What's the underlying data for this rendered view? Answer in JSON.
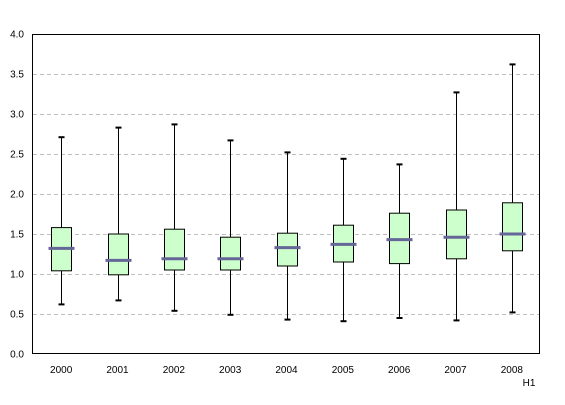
{
  "chart_data": {
    "type": "box",
    "categories": [
      "2000",
      "2001",
      "2002",
      "2003",
      "2004",
      "2005",
      "2006",
      "2007",
      "2008"
    ],
    "x_suffix_label": "H1",
    "y_ticks": [
      "0.0",
      "0.5",
      "1.0",
      "1.5",
      "2.0",
      "2.5",
      "3.0",
      "3.5",
      "4.0"
    ],
    "ylim": [
      0,
      4
    ],
    "grid": "horizontal-dashed",
    "series": [
      {
        "boxes": [
          {
            "min": 0.62,
            "q1": 1.04,
            "median": 1.32,
            "q3": 1.58,
            "max": 2.71
          },
          {
            "min": 0.67,
            "q1": 0.99,
            "median": 1.17,
            "q3": 1.5,
            "max": 2.83
          },
          {
            "min": 0.54,
            "q1": 1.05,
            "median": 1.19,
            "q3": 1.56,
            "max": 2.87
          },
          {
            "min": 0.49,
            "q1": 1.05,
            "median": 1.19,
            "q3": 1.46,
            "max": 2.67
          },
          {
            "min": 0.43,
            "q1": 1.1,
            "median": 1.33,
            "q3": 1.51,
            "max": 2.52
          },
          {
            "min": 0.41,
            "q1": 1.15,
            "median": 1.37,
            "q3": 1.61,
            "max": 2.44
          },
          {
            "min": 0.45,
            "q1": 1.13,
            "median": 1.43,
            "q3": 1.76,
            "max": 2.37
          },
          {
            "min": 0.42,
            "q1": 1.19,
            "median": 1.46,
            "q3": 1.8,
            "max": 3.27
          },
          {
            "min": 0.52,
            "q1": 1.29,
            "median": 1.5,
            "q3": 1.89,
            "max": 3.62
          }
        ]
      }
    ],
    "colors": {
      "box_fill": "#ccffcc",
      "box_stroke": "#000000",
      "median": "#666699",
      "grid": "#c0c0c0"
    }
  }
}
